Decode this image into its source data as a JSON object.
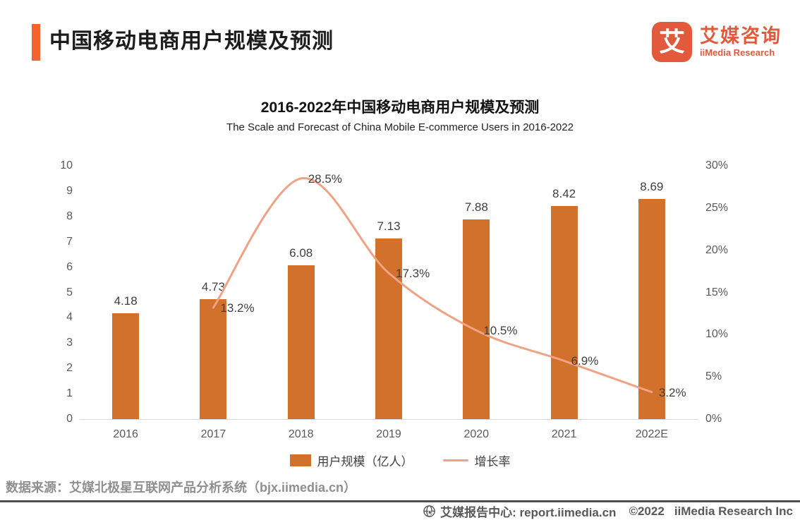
{
  "header": {
    "title": "中国移动电商用户规模及预测",
    "logo": {
      "icon_char": "艾",
      "name_cn": "艾媒咨询",
      "name_en": "iiMedia Research"
    }
  },
  "chart_data": {
    "type": "bar",
    "title": "2016-2022年中国移动电商用户规模及预测",
    "subtitle": "The Scale and Forecast of China Mobile E-commerce Users in 2016-2022",
    "categories": [
      "2016",
      "2017",
      "2018",
      "2019",
      "2020",
      "2021",
      "2022E"
    ],
    "series": [
      {
        "name": "用户规模（亿人）",
        "type": "bar",
        "axis": "left",
        "color": "#D2712B",
        "values": [
          4.18,
          4.73,
          6.08,
          7.13,
          7.88,
          8.42,
          8.69
        ],
        "value_labels": [
          "4.18",
          "4.73",
          "6.08",
          "7.13",
          "7.88",
          "8.42",
          "8.69"
        ]
      },
      {
        "name": "增长率",
        "type": "line",
        "axis": "right",
        "color": "#F0A285",
        "values": [
          null,
          13.2,
          28.5,
          17.3,
          10.5,
          6.9,
          3.2
        ],
        "value_labels": [
          "",
          "13.2%",
          "28.5%",
          "17.3%",
          "10.5%",
          "6.9%",
          "3.2%"
        ]
      }
    ],
    "left_axis": {
      "min": 0,
      "max": 10,
      "step": 1,
      "ticks": [
        "0",
        "1",
        "2",
        "3",
        "4",
        "5",
        "6",
        "7",
        "8",
        "9",
        "10"
      ]
    },
    "right_axis": {
      "min": 0,
      "max": 30,
      "step": 5,
      "ticks": [
        "0%",
        "5%",
        "10%",
        "15%",
        "20%",
        "25%",
        "30%"
      ]
    },
    "grid": false,
    "legend_position": "bottom",
    "line_smooth": true
  },
  "footer": {
    "source": "数据来源：艾媒北极星互联网产品分析系统（bjx.iimedia.cn）",
    "report_center": "艾媒报告中心: report.iimedia.cn",
    "copyright": "©2022",
    "company": "iiMedia Research Inc"
  },
  "icons": {
    "brand": "ai-square-logo",
    "report": "globe-cursor"
  },
  "colors": {
    "bar": "#D2712B",
    "line": "#F0A285",
    "accent": "#F4632B",
    "brand": "#E2593C",
    "axis": "#d9d9d9"
  }
}
